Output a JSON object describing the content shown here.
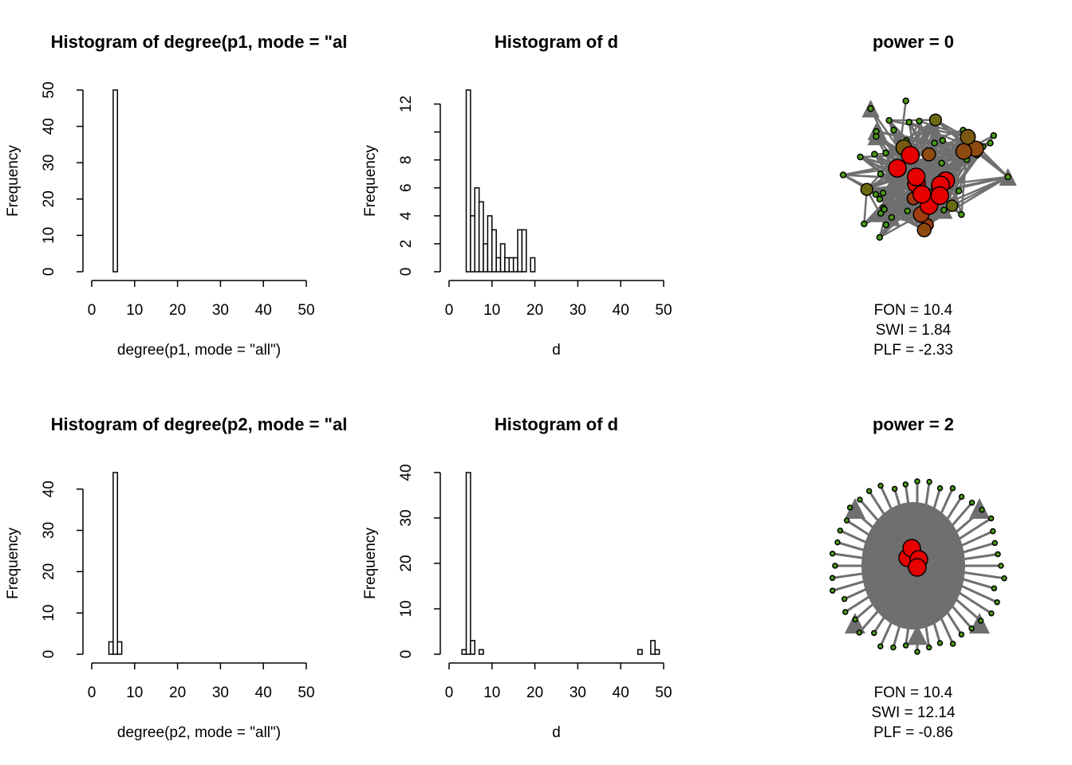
{
  "chart_data": [
    {
      "type": "histogram",
      "title": "Histogram of degree(p1, mode = \"al",
      "x_label": "degree(p1, mode = \"all\")",
      "y_label": "Frequency",
      "bins": [
        0,
        1,
        2,
        3,
        4,
        5,
        6,
        7,
        8,
        9,
        10,
        11,
        12,
        13,
        14,
        15,
        16,
        17,
        18,
        19,
        20,
        21,
        22,
        23,
        24,
        25,
        26,
        27,
        28,
        29,
        30,
        31,
        32,
        33,
        34,
        35,
        36,
        37,
        38,
        39,
        40,
        41,
        42,
        43,
        44,
        45,
        46,
        47,
        48,
        49,
        50
      ],
      "values": [
        0,
        0,
        0,
        0,
        0,
        50,
        0,
        0,
        0,
        0,
        0,
        0,
        0,
        0,
        0,
        0,
        0,
        0,
        0,
        0,
        0,
        0,
        0,
        0,
        0,
        0,
        0,
        0,
        0,
        0,
        0,
        0,
        0,
        0,
        0,
        0,
        0,
        0,
        0,
        0,
        0,
        0,
        0,
        0,
        0,
        0,
        0,
        0,
        0,
        0
      ],
      "xlim": [
        0,
        50
      ],
      "xticks": [
        0,
        10,
        20,
        30,
        40,
        50
      ],
      "ylim": [
        0,
        50
      ],
      "yticks": [
        0,
        10,
        20,
        30,
        40,
        50
      ]
    },
    {
      "type": "histogram",
      "title": "Histogram of d",
      "x_label": "d",
      "y_label": "Frequency",
      "bins": [
        0,
        1,
        2,
        3,
        4,
        5,
        6,
        7,
        8,
        9,
        10,
        11,
        12,
        13,
        14,
        15,
        16,
        17,
        18,
        19,
        20,
        21,
        22,
        23,
        24,
        25,
        26,
        27,
        28,
        29,
        30,
        31,
        32,
        33,
        34,
        35,
        36,
        37,
        38,
        39,
        40,
        41,
        42,
        43,
        44,
        45,
        46,
        47,
        48,
        49,
        50
      ],
      "values": [
        0,
        0,
        0,
        0,
        13,
        4,
        6,
        5,
        2,
        4,
        3,
        1,
        2,
        1,
        1,
        1,
        3,
        3,
        0,
        1,
        0,
        0,
        0,
        0,
        0,
        0,
        0,
        0,
        0,
        0,
        0,
        0,
        0,
        0,
        0,
        0,
        0,
        0,
        0,
        0,
        0,
        0,
        0,
        0,
        0,
        0,
        0,
        0,
        0,
        0
      ],
      "xlim": [
        0,
        50
      ],
      "xticks": [
        0,
        10,
        20,
        30,
        40,
        50
      ],
      "ylim": [
        0,
        13
      ],
      "yticks": [
        0,
        2,
        4,
        6,
        8,
        {
          "value": 10,
          "label": null
        },
        12
      ]
    },
    {
      "type": "network",
      "title": "power = 0",
      "annotations": [
        "FON = 10.4",
        "SWI = 1.84",
        "PLF = -2.33"
      ]
    },
    {
      "type": "histogram",
      "title": "Histogram of degree(p2, mode = \"al",
      "x_label": "degree(p2, mode = \"all\")",
      "y_label": "Frequency",
      "bins": [
        0,
        1,
        2,
        3,
        4,
        5,
        6,
        7,
        8,
        9,
        10,
        11,
        12,
        13,
        14,
        15,
        16,
        17,
        18,
        19,
        20,
        21,
        22,
        23,
        24,
        25,
        26,
        27,
        28,
        29,
        30,
        31,
        32,
        33,
        34,
        35,
        36,
        37,
        38,
        39,
        40,
        41,
        42,
        43,
        44,
        45,
        46,
        47,
        48,
        49,
        50
      ],
      "values": [
        0,
        0,
        0,
        0,
        3,
        44,
        3,
        0,
        0,
        0,
        0,
        0,
        0,
        0,
        0,
        0,
        0,
        0,
        0,
        0,
        0,
        0,
        0,
        0,
        0,
        0,
        0,
        0,
        0,
        0,
        0,
        0,
        0,
        0,
        0,
        0,
        0,
        0,
        0,
        0,
        0,
        0,
        0,
        0,
        0,
        0,
        0,
        0,
        0,
        0
      ],
      "xlim": [
        0,
        50
      ],
      "xticks": [
        0,
        10,
        20,
        30,
        40,
        50
      ],
      "ylim": [
        0,
        44
      ],
      "yticks": [
        0,
        10,
        20,
        30,
        40
      ]
    },
    {
      "type": "histogram",
      "title": "Histogram of d",
      "x_label": "d",
      "y_label": "Frequency",
      "bins": [
        0,
        1,
        2,
        3,
        4,
        5,
        6,
        7,
        8,
        9,
        10,
        11,
        12,
        13,
        14,
        15,
        16,
        17,
        18,
        19,
        20,
        21,
        22,
        23,
        24,
        25,
        26,
        27,
        28,
        29,
        30,
        31,
        32,
        33,
        34,
        35,
        36,
        37,
        38,
        39,
        40,
        41,
        42,
        43,
        44,
        45,
        46,
        47,
        48,
        49,
        50
      ],
      "values": [
        0,
        0,
        0,
        1,
        40,
        3,
        0,
        1,
        0,
        0,
        0,
        0,
        0,
        0,
        0,
        0,
        0,
        0,
        0,
        0,
        0,
        0,
        0,
        0,
        0,
        0,
        0,
        0,
        0,
        0,
        0,
        0,
        0,
        0,
        0,
        0,
        0,
        0,
        0,
        0,
        0,
        0,
        0,
        0,
        1,
        0,
        0,
        3,
        1,
        0
      ],
      "xlim": [
        0,
        50
      ],
      "xticks": [
        0,
        10,
        20,
        30,
        40,
        50
      ],
      "ylim": [
        0,
        40
      ],
      "yticks": [
        0,
        10,
        20,
        30,
        40
      ]
    },
    {
      "type": "network",
      "title": "power = 2",
      "annotations": [
        "FON = 10.4",
        "SWI = 12.14",
        "PLF = -0.86"
      ]
    }
  ]
}
